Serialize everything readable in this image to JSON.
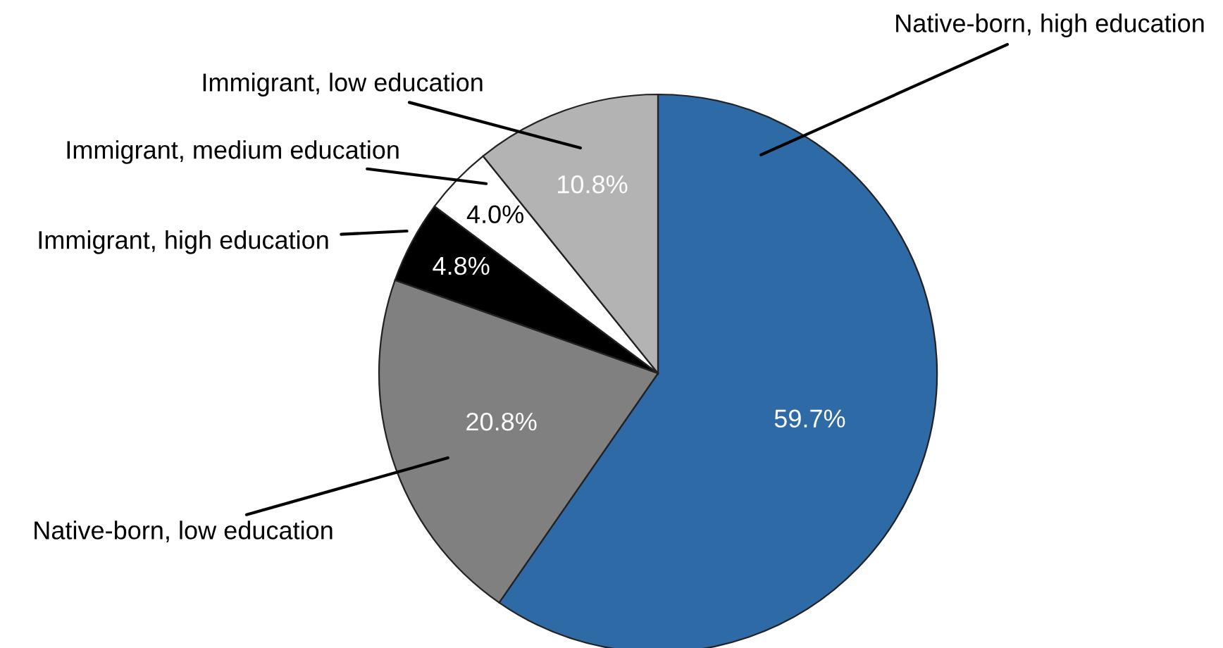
{
  "chart_data": {
    "type": "pie",
    "categories": [
      "Native-born, high education",
      "Native-born, low education",
      "Immigrant, high education",
      "Immigrant, medium education",
      "Immigrant, low education"
    ],
    "values": [
      59.7,
      20.8,
      4.8,
      4.0,
      10.8
    ],
    "colors": [
      "#2e6aa6",
      "#808080",
      "#000000",
      "#ffffff",
      "#b3b3b3"
    ],
    "value_labels": [
      "59.7%",
      "20.8%",
      "4.8%",
      "4.0%",
      "10.8%"
    ]
  }
}
